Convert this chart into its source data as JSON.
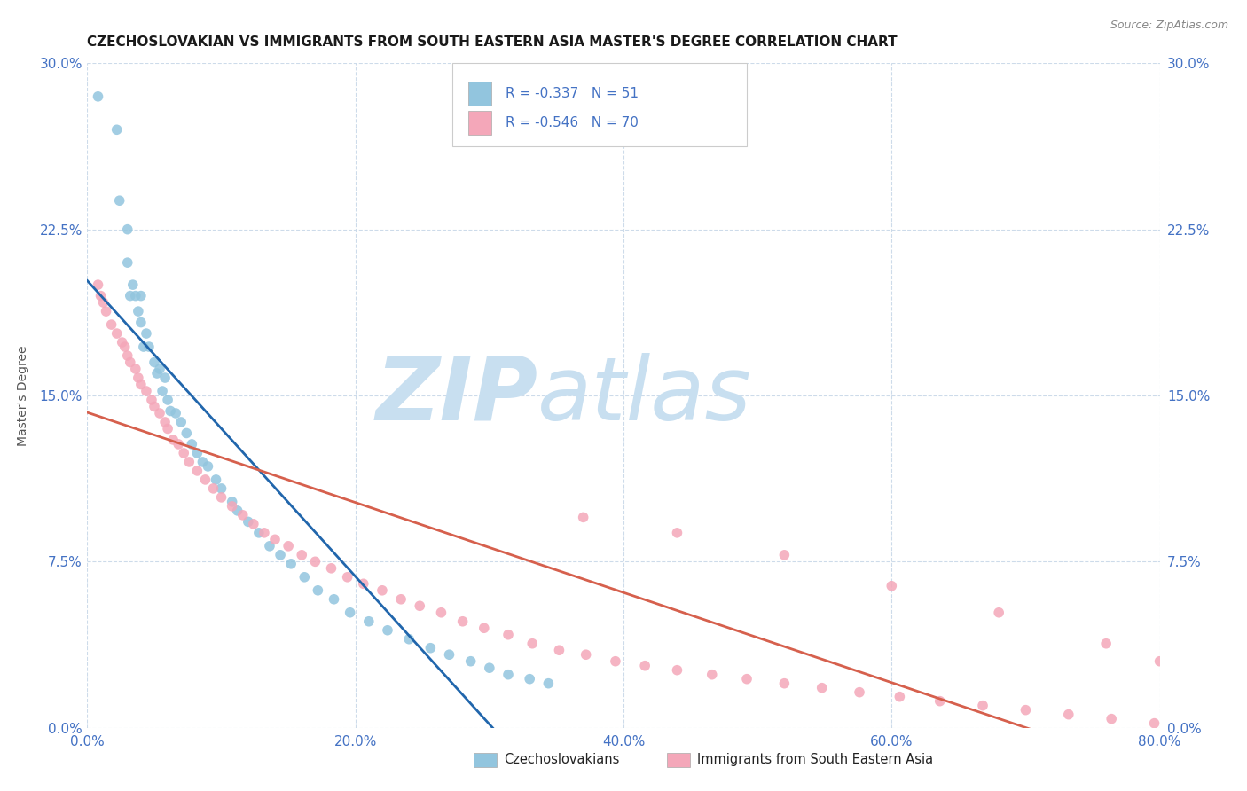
{
  "title": "CZECHOSLOVAKIAN VS IMMIGRANTS FROM SOUTH EASTERN ASIA MASTER'S DEGREE CORRELATION CHART",
  "source": "Source: ZipAtlas.com",
  "ylabel": "Master's Degree",
  "xlim": [
    0.0,
    0.8
  ],
  "ylim": [
    0.0,
    0.3
  ],
  "legend_r1": "-0.337",
  "legend_n1": "51",
  "legend_r2": "-0.546",
  "legend_n2": "70",
  "label1": "Czechoslovakians",
  "label2": "Immigrants from South Eastern Asia",
  "color1": "#92c5de",
  "color2": "#f4a7b9",
  "line_color1": "#2166ac",
  "line_color2": "#d6604d",
  "watermark_zip": "ZIP",
  "watermark_atlas": "atlas",
  "watermark_color_zip": "#c8dff0",
  "watermark_color_atlas": "#c8dff0",
  "title_color": "#1a1a1a",
  "tick_color": "#4472c4",
  "background_color": "#ffffff",
  "grid_color": "#c8d8e8",
  "scatter1_x": [
    0.008,
    0.022,
    0.024,
    0.03,
    0.03,
    0.032,
    0.034,
    0.036,
    0.038,
    0.04,
    0.04,
    0.042,
    0.044,
    0.046,
    0.05,
    0.052,
    0.054,
    0.056,
    0.058,
    0.06,
    0.062,
    0.066,
    0.07,
    0.074,
    0.078,
    0.082,
    0.086,
    0.09,
    0.096,
    0.1,
    0.108,
    0.112,
    0.12,
    0.128,
    0.136,
    0.144,
    0.152,
    0.162,
    0.172,
    0.184,
    0.196,
    0.21,
    0.224,
    0.24,
    0.256,
    0.27,
    0.286,
    0.3,
    0.314,
    0.33,
    0.344
  ],
  "scatter1_y": [
    0.285,
    0.27,
    0.238,
    0.225,
    0.21,
    0.195,
    0.2,
    0.195,
    0.188,
    0.195,
    0.183,
    0.172,
    0.178,
    0.172,
    0.165,
    0.16,
    0.162,
    0.152,
    0.158,
    0.148,
    0.143,
    0.142,
    0.138,
    0.133,
    0.128,
    0.124,
    0.12,
    0.118,
    0.112,
    0.108,
    0.102,
    0.098,
    0.093,
    0.088,
    0.082,
    0.078,
    0.074,
    0.068,
    0.062,
    0.058,
    0.052,
    0.048,
    0.044,
    0.04,
    0.036,
    0.033,
    0.03,
    0.027,
    0.024,
    0.022,
    0.02
  ],
  "scatter2_x": [
    0.008,
    0.01,
    0.012,
    0.014,
    0.018,
    0.022,
    0.026,
    0.028,
    0.03,
    0.032,
    0.036,
    0.038,
    0.04,
    0.044,
    0.048,
    0.05,
    0.054,
    0.058,
    0.06,
    0.064,
    0.068,
    0.072,
    0.076,
    0.082,
    0.088,
    0.094,
    0.1,
    0.108,
    0.116,
    0.124,
    0.132,
    0.14,
    0.15,
    0.16,
    0.17,
    0.182,
    0.194,
    0.206,
    0.22,
    0.234,
    0.248,
    0.264,
    0.28,
    0.296,
    0.314,
    0.332,
    0.352,
    0.372,
    0.394,
    0.416,
    0.44,
    0.466,
    0.492,
    0.52,
    0.548,
    0.576,
    0.606,
    0.636,
    0.668,
    0.7,
    0.732,
    0.764,
    0.796,
    0.37,
    0.44,
    0.52,
    0.6,
    0.68,
    0.76,
    0.8
  ],
  "scatter2_y": [
    0.2,
    0.195,
    0.192,
    0.188,
    0.182,
    0.178,
    0.174,
    0.172,
    0.168,
    0.165,
    0.162,
    0.158,
    0.155,
    0.152,
    0.148,
    0.145,
    0.142,
    0.138,
    0.135,
    0.13,
    0.128,
    0.124,
    0.12,
    0.116,
    0.112,
    0.108,
    0.104,
    0.1,
    0.096,
    0.092,
    0.088,
    0.085,
    0.082,
    0.078,
    0.075,
    0.072,
    0.068,
    0.065,
    0.062,
    0.058,
    0.055,
    0.052,
    0.048,
    0.045,
    0.042,
    0.038,
    0.035,
    0.033,
    0.03,
    0.028,
    0.026,
    0.024,
    0.022,
    0.02,
    0.018,
    0.016,
    0.014,
    0.012,
    0.01,
    0.008,
    0.006,
    0.004,
    0.002,
    0.095,
    0.088,
    0.078,
    0.064,
    0.052,
    0.038,
    0.03
  ]
}
